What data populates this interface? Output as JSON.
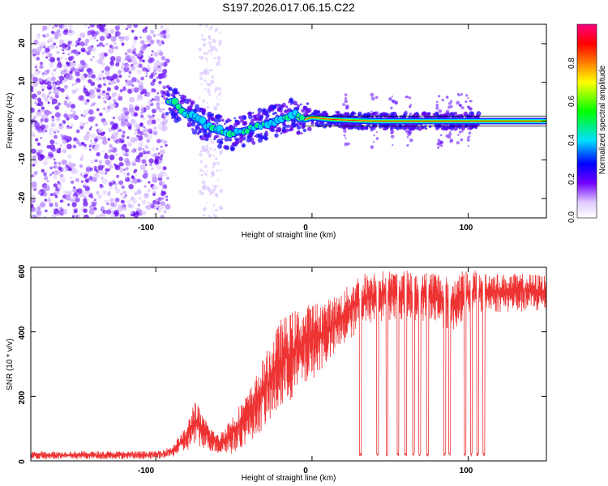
{
  "chart_data": [
    {
      "type": "scatter",
      "title": "S197.2026.017.06.15.C22",
      "xlabel": "Height of straight line (km)",
      "ylabel": "Frequency (Hz)",
      "xlim": [
        -180,
        150
      ],
      "ylim": [
        -25,
        25
      ],
      "xticks": [
        "-100",
        "0",
        "100"
      ],
      "yticks": [
        "20",
        "10",
        "0",
        "-10",
        "-20"
      ],
      "colorbar": {
        "label": "Normalized spectral amplitude",
        "range": [
          0,
          1
        ],
        "ticks": [
          "0.0",
          "0.2",
          "0.4",
          "0.6",
          "0.8"
        ],
        "colors": [
          "#ffffff",
          "#e8d8ff",
          "#7000ff",
          "#0000ff",
          "#00e0ff",
          "#00ff00",
          "#ffff00",
          "#ff8000",
          "#ff0000",
          "#ff0080"
        ]
      },
      "trace": {
        "x": [
          -92,
          -88,
          -84,
          -80,
          -76,
          -72,
          -68,
          -64,
          -60,
          -56,
          -52,
          -48,
          -44,
          -40,
          -36,
          -32,
          -28,
          -24,
          -20,
          -16,
          -12,
          -8,
          -4,
          0,
          10,
          20,
          40,
          60,
          80,
          100,
          108,
          150
        ],
        "y": [
          5,
          4.5,
          3,
          2,
          1,
          0,
          -1,
          -2,
          -2.5,
          -3,
          -3.5,
          -3,
          -2.5,
          -2,
          -1.5,
          -1,
          -0.5,
          0,
          0.5,
          1,
          2,
          0.5,
          0.5,
          1,
          0.5,
          0.3,
          0,
          0,
          0,
          0,
          0,
          0
        ]
      }
    },
    {
      "type": "line",
      "xlabel": "Height of straight line (km)",
      "ylabel": "SNR (10 * v/v)",
      "xlim": [
        -180,
        150
      ],
      "ylim": [
        0,
        600
      ],
      "xticks": [
        "-100",
        "0",
        "100"
      ],
      "yticks": [
        "600",
        "400",
        "200",
        "0"
      ],
      "series": [
        {
          "name": "SNR",
          "color": "#ee3333",
          "envelope": {
            "x": [
              -180,
              -100,
              -90,
              -80,
              -75,
              -70,
              -60,
              -50,
              -40,
              -30,
              -20,
              -10,
              0,
              10,
              20,
              30,
              40,
              60,
              80,
              90,
              95,
              110,
              120,
              150
            ],
            "low": [
              5,
              5,
              10,
              30,
              40,
              40,
              20,
              20,
              60,
              100,
              150,
              200,
              250,
              300,
              350,
              400,
              430,
              440,
              420,
              400,
              430,
              460,
              460,
              460
            ],
            "high": [
              30,
              30,
              45,
              110,
              200,
              140,
              80,
              150,
              220,
              330,
              440,
              470,
              490,
              500,
              530,
              580,
              590,
              590,
              590,
              560,
              590,
              590,
              580,
              580
            ]
          },
          "dropouts": [
            31,
            42,
            48,
            55,
            60,
            65,
            69,
            74,
            85,
            88,
            98,
            102,
            106,
            110
          ]
        }
      ]
    }
  ]
}
